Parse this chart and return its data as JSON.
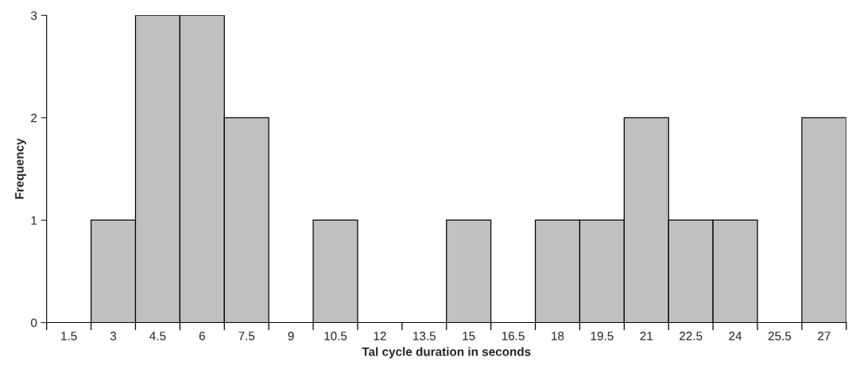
{
  "chart_data": {
    "type": "bar",
    "xlabel": "Tal cycle duration in seconds",
    "ylabel": "Frequency",
    "categories": [
      "1.5",
      "3",
      "4.5",
      "6",
      "7.5",
      "9",
      "10.5",
      "12",
      "13.5",
      "15",
      "16.5",
      "18",
      "19.5",
      "21",
      "22.5",
      "24",
      "25.5",
      "27"
    ],
    "values": [
      0,
      1,
      3,
      3,
      2,
      0,
      1,
      0,
      0,
      1,
      0,
      1,
      1,
      2,
      1,
      1,
      0,
      2
    ],
    "color": "#c0c0c0",
    "ylim": [
      0,
      3
    ],
    "yticks": [
      0,
      1,
      2,
      3
    ],
    "grid": false,
    "legend": false
  }
}
